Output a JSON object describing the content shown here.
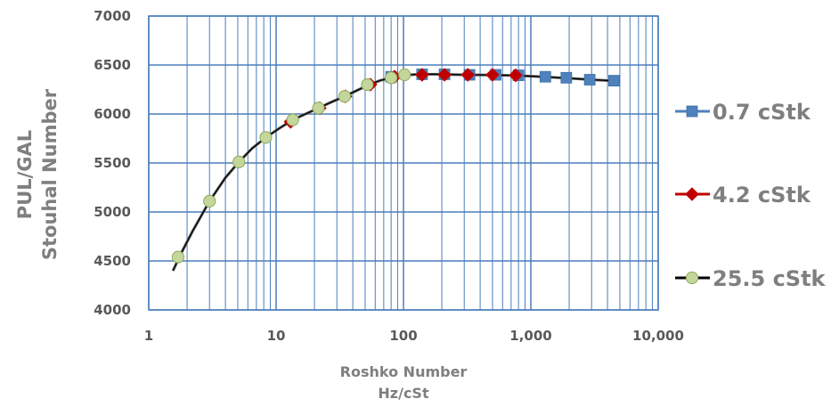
{
  "chart_data": {
    "type": "scatter",
    "x_scale": "log",
    "xlim": [
      1,
      10000
    ],
    "ylim": [
      4000,
      7000
    ],
    "x_ticks": [
      "1",
      "10",
      "100",
      "1,000",
      "10,000"
    ],
    "y_ticks": [
      "4000",
      "4500",
      "5000",
      "5500",
      "6000",
      "6500",
      "7000"
    ],
    "xlabel_line1": "Roshko Number",
    "xlabel_line2": "Hz/cSt",
    "ylabel_line1": "PUL/GAL",
    "ylabel_line2": "Stouhal Number",
    "grid": true,
    "legend_position": "right",
    "series": [
      {
        "name": "0.7 cStk",
        "color": "#4f81bd",
        "marker": "square",
        "x": [
          80,
          140,
          210,
          330,
          530,
          800,
          1300,
          1900,
          2900,
          4500
        ],
        "y": [
          6380,
          6405,
          6405,
          6400,
          6400,
          6395,
          6380,
          6370,
          6350,
          6340
        ]
      },
      {
        "name": "4.2 cStk",
        "color": "#c00000",
        "marker": "diamond",
        "x": [
          13,
          22,
          35,
          55,
          85,
          140,
          210,
          320,
          500,
          760
        ],
        "y": [
          5920,
          6060,
          6180,
          6300,
          6380,
          6400,
          6400,
          6400,
          6400,
          6395
        ]
      },
      {
        "name": "25.5 cStk",
        "color": "#000000",
        "marker_fill": "#c3d69b",
        "marker": "circle",
        "x": [
          1.7,
          3.0,
          5.1,
          8.3,
          13.5,
          21.5,
          34.5,
          52,
          80,
          102
        ],
        "y": [
          4540,
          5110,
          5510,
          5760,
          5940,
          6060,
          6180,
          6300,
          6370,
          6400
        ]
      }
    ],
    "trendline": {
      "x": [
        1.55,
        1.8,
        2.2,
        3.0,
        4.0,
        5.1,
        6.5,
        8.3,
        10.5,
        13.5,
        17,
        21.5,
        27,
        34.5,
        43,
        52,
        65,
        80,
        100,
        130,
        180,
        300,
        500,
        800,
        1300,
        2000,
        3000,
        5000
      ],
      "y": [
        4400,
        4580,
        4800,
        5110,
        5350,
        5510,
        5650,
        5760,
        5850,
        5940,
        6000,
        6060,
        6120,
        6180,
        6240,
        6290,
        6340,
        6370,
        6395,
        6405,
        6405,
        6400,
        6398,
        6392,
        6378,
        6365,
        6350,
        6335
      ]
    }
  }
}
